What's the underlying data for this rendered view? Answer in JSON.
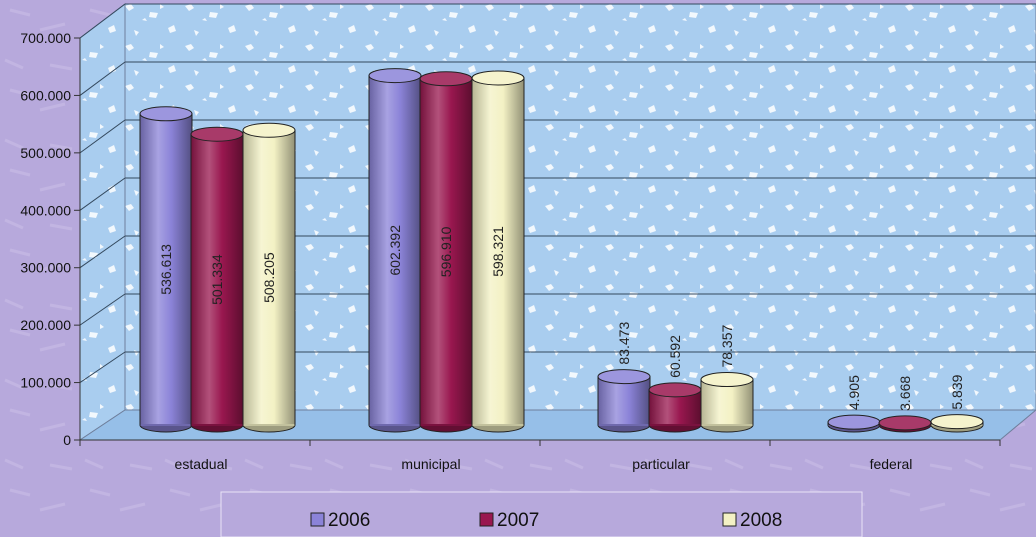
{
  "chart_data": {
    "type": "bar",
    "title": "",
    "xlabel": "",
    "ylabel": "",
    "categories": [
      "estadual",
      "municipal",
      "particular",
      "federal"
    ],
    "series": [
      {
        "name": "2006",
        "values": [
          536613,
          602392,
          83473,
          4905
        ],
        "labels": [
          "536.613",
          "602.392",
          "83.473",
          "4.905"
        ],
        "color": "#8b83d8"
      },
      {
        "name": "2007",
        "values": [
          501334,
          596910,
          60592,
          3668
        ],
        "labels": [
          "501.334",
          "596.910",
          "60.592",
          "3.668"
        ],
        "color": "#99174f"
      },
      {
        "name": "2008",
        "values": [
          508205,
          598321,
          78357,
          5839
        ],
        "labels": [
          "508.205",
          "598.321",
          "78.357",
          "5.839"
        ],
        "color": "#f3f1c4"
      }
    ],
    "ylim": [
      0,
      700000
    ],
    "yticks": [
      0,
      100000,
      200000,
      300000,
      400000,
      500000,
      600000,
      700000
    ],
    "ytick_labels": [
      "0",
      "100.000",
      "200.000",
      "300.000",
      "400.000",
      "500.000",
      "600.000",
      "700.000"
    ],
    "legend_position": "bottom",
    "grid": true,
    "colors": {
      "background": "#b7a9dc",
      "wall": "#a9cdef",
      "floor": "#96bfe8"
    }
  }
}
